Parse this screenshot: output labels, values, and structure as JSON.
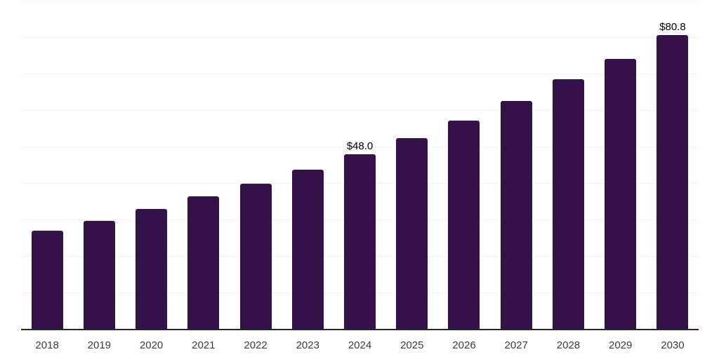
{
  "chart_data": {
    "type": "bar",
    "title": "",
    "xlabel": "",
    "ylabel": "",
    "categories": [
      "2018",
      "2019",
      "2020",
      "2021",
      "2022",
      "2023",
      "2024",
      "2025",
      "2026",
      "2027",
      "2028",
      "2029",
      "2030"
    ],
    "values": [
      27.1,
      29.8,
      33.0,
      36.6,
      40.0,
      43.8,
      48.0,
      52.6,
      57.4,
      62.8,
      68.6,
      74.3,
      80.8
    ],
    "bar_labels": [
      "",
      "",
      "",
      "",
      "",
      "",
      "$48.0",
      "",
      "",
      "",
      "",
      "",
      "$80.8"
    ],
    "ylim": [
      0,
      90.4
    ],
    "gridline_values": [
      10,
      20,
      30,
      40,
      50,
      60,
      70,
      80,
      90
    ],
    "grid": "horizontal",
    "legend": "none",
    "colors": {
      "bar": "#341148",
      "gridline": "#f1f1f1",
      "axis_line": "#262626",
      "bar_label_text": "#000000",
      "tick_label_text": "#3a3a3a",
      "background": "#ffffff"
    }
  }
}
